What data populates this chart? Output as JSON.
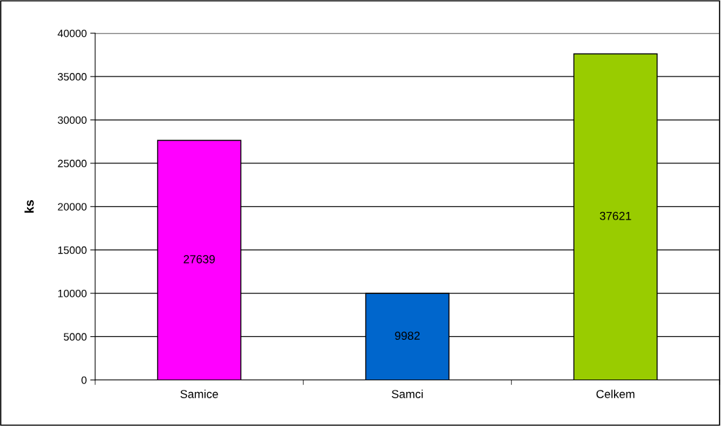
{
  "chart_data": {
    "type": "bar",
    "ylabel": "ks",
    "categories": [
      "Samice",
      "Samci",
      "Celkem"
    ],
    "values": [
      27639,
      9982,
      37621
    ],
    "colors": [
      "#ff00ff",
      "#0066cc",
      "#99cc00"
    ],
    "ylim": [
      0,
      40000
    ],
    "yticks": [
      0,
      5000,
      10000,
      15000,
      20000,
      25000,
      30000,
      35000,
      40000
    ],
    "grid": "y",
    "data_labels": true
  }
}
